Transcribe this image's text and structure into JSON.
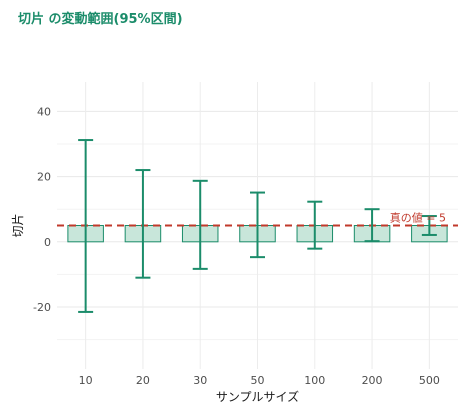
{
  "chart_data": {
    "type": "bar",
    "title": "切片 の変動範囲(95%区間)",
    "xlabel": "サンプルサイズ",
    "ylabel": "切片",
    "categories": [
      "10",
      "20",
      "30",
      "50",
      "100",
      "200",
      "500"
    ],
    "values": [
      5,
      5,
      5,
      5,
      5,
      5,
      5
    ],
    "lower": [
      -21.5,
      -11,
      -8.3,
      -4.7,
      -2.1,
      0.2,
      2.1
    ],
    "upper": [
      31.2,
      22,
      18.7,
      15.1,
      12.3,
      10,
      7.9
    ],
    "yticks": [
      -20,
      0,
      20,
      40
    ],
    "ylim": [
      -39,
      49
    ],
    "grid": true,
    "reference_line": {
      "value": 5,
      "label": "真の値 = 5",
      "style": "dashed"
    },
    "colors": {
      "bar_fill": "#c8e6da",
      "bar_stroke": "#1b8c6a",
      "error_bar": "#1b8c6a",
      "reference_line": "#c0392b",
      "title": "#1b8c6a"
    }
  }
}
